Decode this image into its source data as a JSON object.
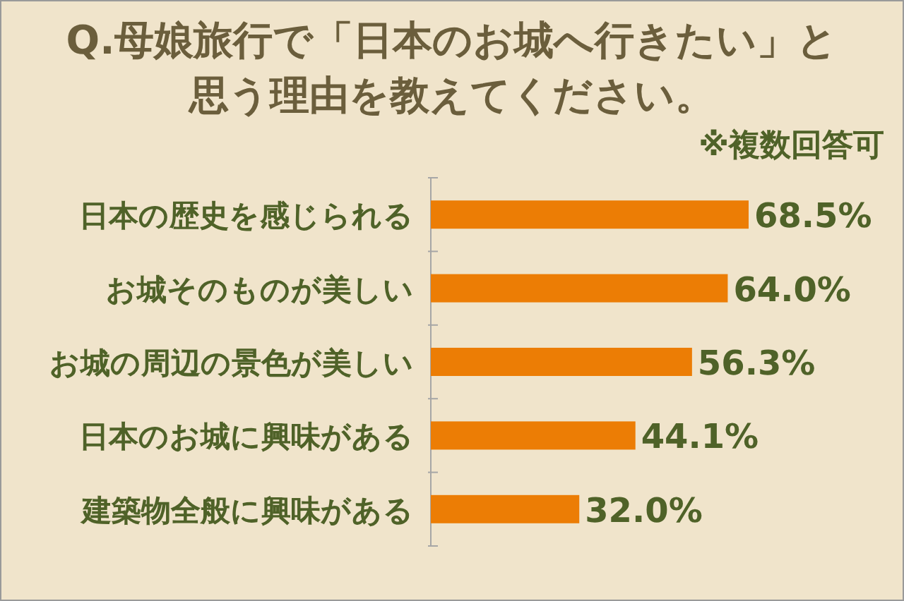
{
  "chart_data": {
    "type": "bar",
    "orientation": "horizontal",
    "title": "Q.母娘旅行で「日本のお城へ行きたい」と思う理由を教えてください。",
    "annotations": [
      "※複数回答可"
    ],
    "categories": [
      "日本の歴史を感じられる",
      "お城そのものが美しい",
      "お城の周辺の景色が美しい",
      "日本のお城に興味がある",
      "建築物全般に興味がある"
    ],
    "values": [
      68.5,
      64.0,
      56.3,
      44.1,
      32.0
    ],
    "value_labels": [
      "68.5%",
      "64.0%",
      "56.3%",
      "44.1%",
      "32.0%"
    ],
    "color": "#ec7d05",
    "tick_labels": "y"
  }
}
